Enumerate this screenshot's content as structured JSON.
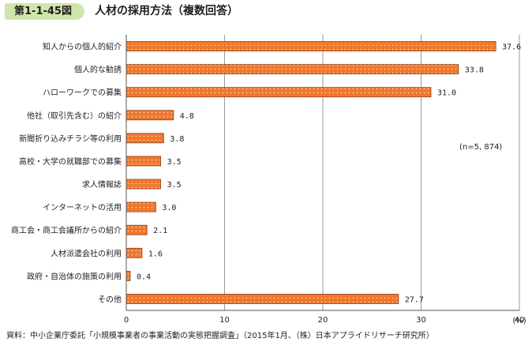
{
  "header": {
    "figure_number": "第1-1-45図",
    "title": "人材の採用方法（複数回答）"
  },
  "chart_data": {
    "type": "bar",
    "orientation": "horizontal",
    "categories": [
      "知人からの個人的紹介",
      "個人的な勧誘",
      "ハローワークでの募集",
      "他社（取引先含む）の紹介",
      "新聞折り込みチラシ等の利用",
      "高校・大学の就職部での募集",
      "求人情報誌",
      "インターネットの活用",
      "商工会・商工会議所からの紹介",
      "人材派遣会社の利用",
      "政府・自治体の施策の利用",
      "その他"
    ],
    "values": [
      37.6,
      33.8,
      31.0,
      4.8,
      3.8,
      3.5,
      3.5,
      3.0,
      2.1,
      1.6,
      0.4,
      27.7
    ],
    "value_labels": [
      "37.6",
      "33.8",
      "31.0",
      "4.8",
      "3.8",
      "3.5",
      "3.5",
      "3.0",
      "2.1",
      "1.6",
      "0.4",
      "27.7"
    ],
    "xlim": [
      0,
      40
    ],
    "xticks": [
      0,
      10,
      20,
      30,
      40
    ],
    "xtick_labels": [
      "0",
      "10",
      "20",
      "30",
      "40"
    ],
    "unit_label": "(%)",
    "annotation": "(n=5, 874)",
    "grid": "vertical",
    "bar_color": "#f0782d",
    "bar_edge_color": "#8a3a10",
    "grid_color": "#9a9a9a"
  },
  "source": "資料：中小企業庁委託「小規模事業者の事業活動の実態把握調査」（2015年1月、（株）日本アプライドリサーチ研究所）"
}
